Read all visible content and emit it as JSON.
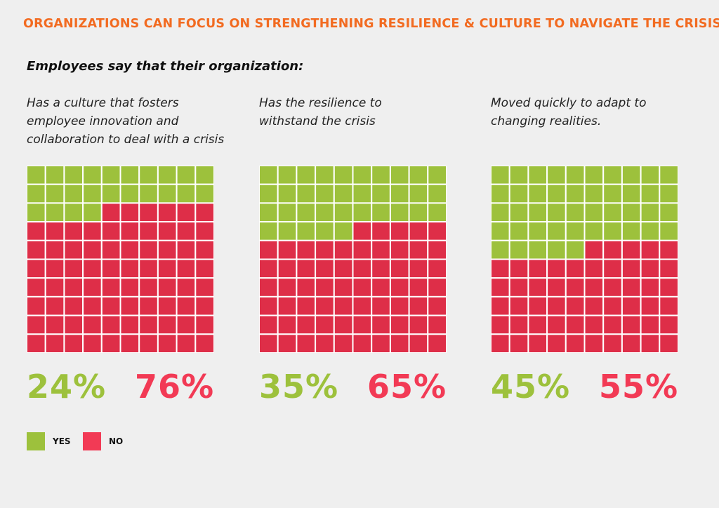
{
  "title": "ORGANIZATIONS CAN FOCUS ON STRENGTHENING RESILIENCE & CULTURE TO NAVIGATE THE CRISIS",
  "subtitle": "Employees say that their organization:",
  "colors": {
    "title": "#f26b21",
    "yes": "#9dc13c",
    "no": "#de2e48",
    "no_text": "#f23a55",
    "background": "#efefef"
  },
  "legend": {
    "yes_label": "YES",
    "no_label": "NO"
  },
  "chart_data": {
    "type": "waffle",
    "grid": [
      10,
      10
    ],
    "series": [
      {
        "label": "Has a culture that fosters\nemployee innovation and\ncollaboration to deal with a crisis",
        "yes": 24,
        "no": 76,
        "yes_text": "24%",
        "no_text": "76%"
      },
      {
        "label": "Has the resilience to\nwithstand the crisis",
        "yes": 35,
        "no": 65,
        "yes_text": "35%",
        "no_text": "65%"
      },
      {
        "label": "Moved quickly to adapt to\nchanging realities.",
        "yes": 45,
        "no": 55,
        "yes_text": "45%",
        "no_text": "55%"
      }
    ]
  }
}
